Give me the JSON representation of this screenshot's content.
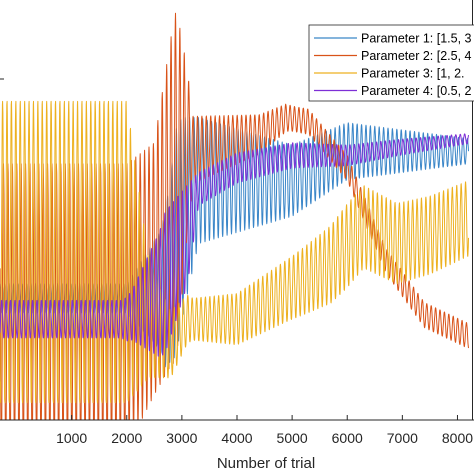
{
  "chart_data": {
    "type": "line",
    "title": "",
    "xlabel": "Number of trial",
    "ylabel": "",
    "xlim": [
      -300,
      8300
    ],
    "ylim": [
      0,
      1
    ],
    "xticks": [
      1000,
      2000,
      3000,
      4000,
      5000,
      6000,
      7000,
      8000
    ],
    "x_tick_labels": [
      "1000",
      "2000",
      "3000",
      "4000",
      "5000",
      "6000",
      "7000",
      "8000"
    ],
    "grid": false,
    "legend_position": "top-right",
    "colors": {
      "axis": "#262626",
      "param1": "#3a86c8",
      "param2": "#d95319",
      "param3": "#edb120",
      "param4": "#7e2fd6"
    },
    "series": [
      {
        "name": "Parameter 1: [1.5, 3",
        "color": "#3a86c8",
        "period": 80,
        "center_x": [
          -300,
          2000,
          2700,
          3000,
          3300,
          5000,
          6000,
          8200
        ],
        "center_y": [
          0.29,
          0.29,
          0.31,
          0.48,
          0.57,
          0.57,
          0.64,
          0.64
        ],
        "amp_x": [
          -300,
          2000,
          2600,
          2900,
          3300,
          5000,
          8200
        ],
        "amp_y": [
          0.035,
          0.035,
          0.14,
          0.27,
          0.15,
          0.085,
          0.03
        ]
      },
      {
        "name": "Parameter 2: [2.5, 4",
        "color": "#d95319",
        "period": 80,
        "center_x": [
          -300,
          2000,
          2500,
          2800,
          3100,
          4400,
          4900,
          5300,
          6000,
          6700,
          7400,
          8200
        ],
        "center_y": [
          0.27,
          0.27,
          0.36,
          0.52,
          0.64,
          0.68,
          0.72,
          0.71,
          0.6,
          0.38,
          0.25,
          0.2
        ],
        "amp_x": [
          -300,
          2000,
          2500,
          2900,
          3200,
          5000,
          6000,
          8200
        ],
        "amp_y": [
          0.34,
          0.34,
          0.3,
          0.42,
          0.08,
          0.03,
          0.03,
          0.03
        ]
      },
      {
        "name": "Parameter 3: [1, 2.",
        "color": "#edb120",
        "period": 80,
        "center_x": [
          -300,
          2000,
          2400,
          2800,
          3100,
          4000,
          5200,
          5700,
          6300,
          6900,
          7500,
          8200
        ],
        "center_y": [
          0.4,
          0.4,
          0.24,
          0.18,
          0.24,
          0.24,
          0.33,
          0.37,
          0.46,
          0.42,
          0.44,
          0.48
        ],
        "amp_x": [
          -300,
          2000,
          2400,
          2800,
          3200,
          5000,
          6000,
          8200
        ],
        "amp_y": [
          0.36,
          0.36,
          0.14,
          0.08,
          0.05,
          0.075,
          0.1,
          0.09
        ]
      },
      {
        "name": "Parameter 4: [0.5, 2",
        "color": "#7e2fd6",
        "period": 80,
        "center_x": [
          -300,
          2000,
          2600,
          3100,
          3300,
          4000,
          5000,
          6000,
          7000,
          8200
        ],
        "center_y": [
          0.24,
          0.24,
          0.3,
          0.44,
          0.55,
          0.6,
          0.63,
          0.63,
          0.65,
          0.67
        ],
        "amp_x": [
          -300,
          1900,
          2100,
          2700,
          3100,
          3300,
          8200
        ],
        "amp_y": [
          0.045,
          0.045,
          0.06,
          0.17,
          0.12,
          0.04,
          0.012
        ]
      }
    ]
  }
}
